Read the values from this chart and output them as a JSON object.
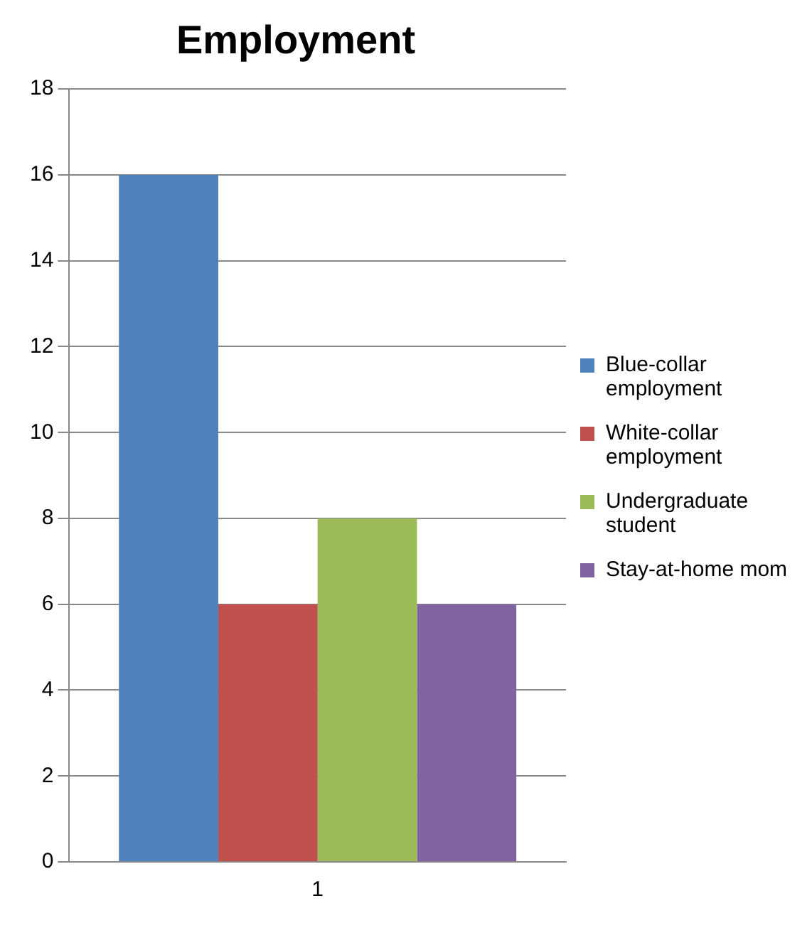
{
  "chart_data": {
    "type": "bar",
    "title": "Employment",
    "categories": [
      "1"
    ],
    "series": [
      {
        "name": "Blue-collar employment",
        "color": "#4f81bd",
        "values": [
          16
        ]
      },
      {
        "name": "White-collar employment",
        "color": "#c0504d",
        "values": [
          6
        ]
      },
      {
        "name": "Undergraduate student",
        "color": "#9bbb59",
        "values": [
          8
        ]
      },
      {
        "name": "Stay-at-home mom",
        "color": "#8064a2",
        "values": [
          6
        ]
      }
    ],
    "ylim": [
      0,
      18
    ],
    "yticks": [
      0,
      2,
      4,
      6,
      8,
      10,
      12,
      14,
      16,
      18
    ],
    "grid": "y",
    "legend": "right"
  }
}
